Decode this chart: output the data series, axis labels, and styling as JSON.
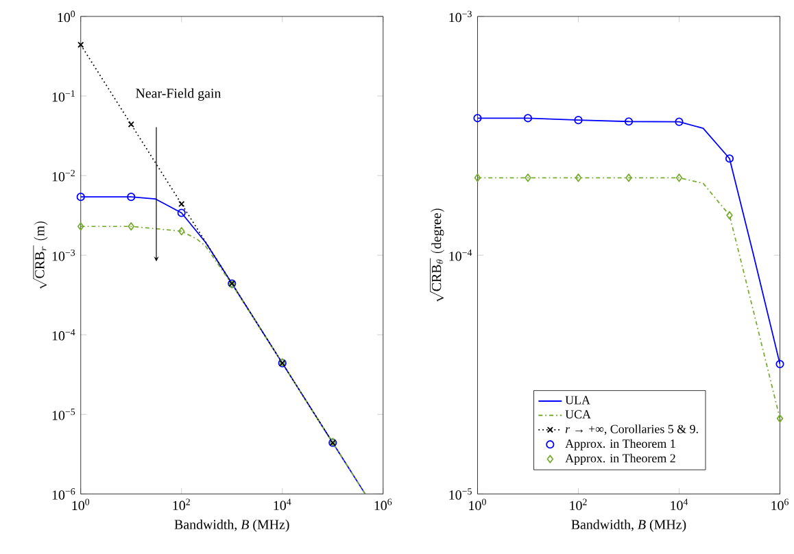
{
  "chart_data": [
    {
      "type": "line",
      "xlabel": "Bandwidth, *B* (MHz)",
      "ylabel": "\\sqrt{\\mathrm{CRB}_r}\\;(\\mathrm{m})",
      "log": "xy",
      "grid": false,
      "legend": false,
      "xlim": [
        1,
        1000000
      ],
      "ylim": [
        1e-06,
        1
      ],
      "xticks": [
        {
          "value": 1,
          "label": "10$^{0}$"
        },
        {
          "value": 100,
          "label": "10$^{2}$"
        },
        {
          "value": 10000,
          "label": "10$^{4}$"
        },
        {
          "value": 1000000,
          "label": "10$^{6}$"
        }
      ],
      "yticks": [
        {
          "value": 1e-06,
          "label": "10$^{−6}$"
        },
        {
          "value": 1e-05,
          "label": "10$^{−5}$"
        },
        {
          "value": 0.0001,
          "label": "10$^{−4}$"
        },
        {
          "value": 0.001,
          "label": "10$^{−3}$"
        },
        {
          "value": 0.01,
          "label": "10$^{−2}$"
        },
        {
          "value": 0.1,
          "label": "10$^{−1}$"
        },
        {
          "value": 1,
          "label": "10$^{0}$"
        }
      ],
      "series": [
        {
          "color": "#0000ff",
          "line_style": "solid",
          "marker": "none",
          "x": [
            1,
            10,
            30,
            100,
            300,
            1000,
            10000,
            100000,
            440000
          ],
          "values": [
            0.0054,
            0.0054,
            0.0051,
            0.0034,
            0.00145,
            0.00044,
            4.4e-05,
            4.4e-06,
            1e-06
          ]
        },
        {
          "color": "#77ac30",
          "line_style": "dashdot",
          "marker": "none",
          "x": [
            1,
            10,
            100,
            200,
            300,
            1000,
            10000,
            100000,
            440000
          ],
          "values": [
            0.0023,
            0.0023,
            0.002,
            0.0016,
            0.0013,
            0.00043,
            4.4e-05,
            4.4e-06,
            1e-06
          ]
        },
        {
          "color": "#000000",
          "line_style": "dotted",
          "marker": "cross",
          "x": [
            1,
            10,
            100,
            1000,
            10000,
            100000
          ],
          "values": [
            0.44,
            0.044,
            0.0044,
            0.00044,
            4.4e-05,
            4.4e-06
          ]
        },
        {
          "type": "scatter",
          "color": "#0000ff",
          "marker": "circle",
          "x": [
            1,
            10,
            100,
            1000,
            10000,
            100000
          ],
          "values": [
            0.0054,
            0.0054,
            0.0034,
            0.00044,
            4.4e-05,
            4.4e-06
          ]
        },
        {
          "type": "scatter",
          "color": "#77ac30",
          "marker": "diamond",
          "x": [
            1,
            10,
            100,
            1000,
            10000,
            100000
          ],
          "values": [
            0.0023,
            0.0023,
            0.002,
            0.00043,
            4.5e-05,
            4.5e-06
          ]
        }
      ],
      "annotations": [
        "Near-Field gain"
      ]
    },
    {
      "type": "line",
      "xlabel": "Bandwidth, *B* (MHz)",
      "ylabel": "\\sqrt{\\mathrm{CRB}_\\theta}\\;(\\mathrm{degree})",
      "log": "xy",
      "grid": false,
      "legend": "bottom",
      "xlim": [
        1,
        1000000
      ],
      "ylim": [
        1e-05,
        0.001
      ],
      "xticks": [
        {
          "value": 1,
          "label": "10$^{0}$"
        },
        {
          "value": 100,
          "label": "10$^{2}$"
        },
        {
          "value": 10000,
          "label": "10$^{4}$"
        },
        {
          "value": 1000000,
          "label": "10$^{6}$"
        }
      ],
      "yticks": [
        {
          "value": 1e-05,
          "label": "10$^{−5}$"
        },
        {
          "value": 0.0001,
          "label": "10$^{−4}$"
        },
        {
          "value": 0.001,
          "label": "10$^{−3}$"
        }
      ],
      "series": [
        {
          "name": "ULA",
          "color": "#0000ff",
          "line_style": "solid",
          "marker": "none",
          "x": [
            1,
            10,
            100,
            1000,
            10000,
            30000,
            100000,
            300000,
            1000000
          ],
          "values": [
            0.000375,
            0.000375,
            0.000368,
            0.000363,
            0.000362,
            0.00034,
            0.000254,
            0.0001,
            3.5e-05
          ]
        },
        {
          "name": "UCA",
          "color": "#77ac30",
          "line_style": "dashdot",
          "marker": "none",
          "x": [
            1,
            10,
            100,
            1000,
            10000,
            30000,
            100000,
            300000,
            1000000
          ],
          "values": [
            0.000211,
            0.000211,
            0.000211,
            0.000211,
            0.000211,
            0.0002,
            0.000147,
            5.8e-05,
            2.07e-05
          ]
        },
        {
          "name": "*r* → +∞, Corollaries 5 & 9.",
          "color": "#000000",
          "line_style": "dotted",
          "marker": "cross"
        },
        {
          "name": "Approx. in Theorem 1",
          "type": "scatter",
          "color": "#0000ff",
          "marker": "circle",
          "x": [
            1,
            10,
            100,
            1000,
            10000,
            100000,
            1000000
          ],
          "values": [
            0.000375,
            0.000375,
            0.000368,
            0.000363,
            0.000362,
            0.000254,
            3.5e-05
          ]
        },
        {
          "name": "Approx. in Theorem 2",
          "type": "scatter",
          "color": "#77ac30",
          "marker": "diamond",
          "x": [
            1,
            10,
            100,
            1000,
            10000,
            100000,
            1000000
          ],
          "values": [
            0.000211,
            0.000211,
            0.000211,
            0.000211,
            0.000211,
            0.000147,
            2.07e-05
          ]
        }
      ]
    }
  ]
}
